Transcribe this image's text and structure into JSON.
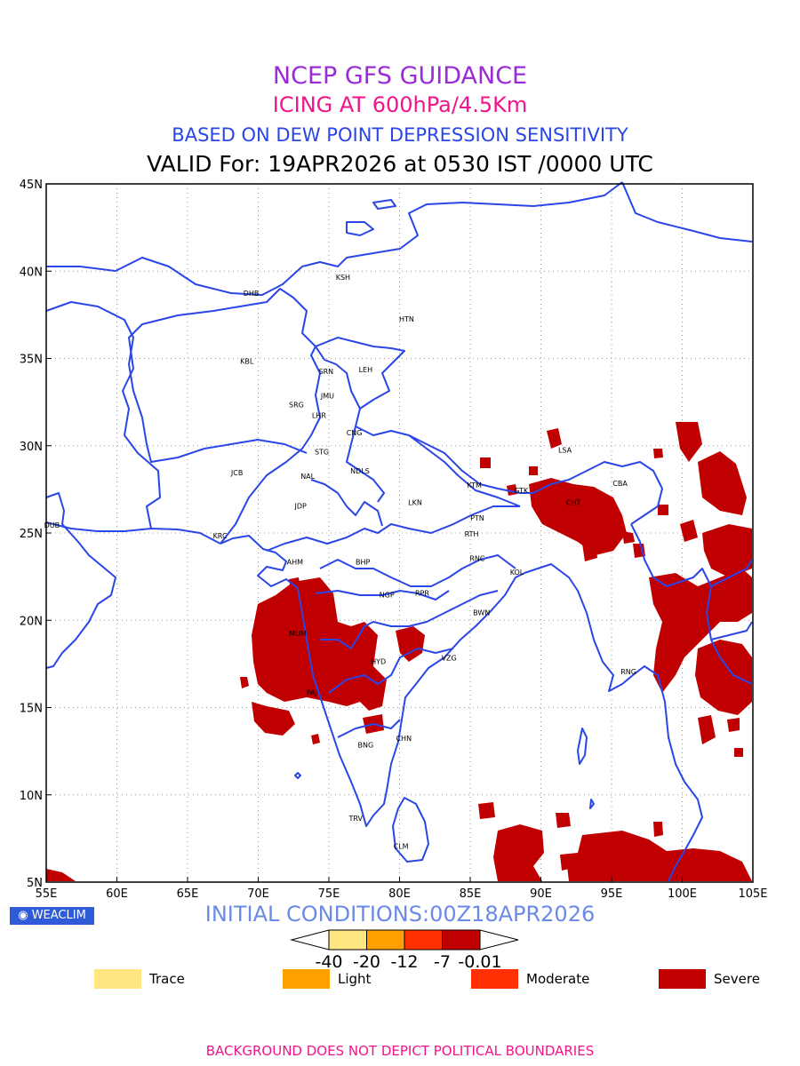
{
  "titles": {
    "line1": "NCEP GFS GUIDANCE",
    "line2": "ICING AT 600hPa/4.5Km",
    "line3": "BASED ON DEW POINT DEPRESSION SENSITIVITY",
    "line4": "VALID For: 19APR2026 at 0530 IST /0000 UTC"
  },
  "map": {
    "lon_range": [
      55,
      105
    ],
    "lat_range": [
      5,
      45
    ],
    "lon_ticks": [
      "55E",
      "60E",
      "65E",
      "70E",
      "75E",
      "80E",
      "85E",
      "90E",
      "95E",
      "100E",
      "105E"
    ],
    "lat_ticks": [
      "5N",
      "10N",
      "15N",
      "20N",
      "25N",
      "30N",
      "35N",
      "40N",
      "45N"
    ],
    "grid": true,
    "colors": {
      "boundary": "#2a46e6",
      "severe": "#c00000",
      "grid": "#999999"
    },
    "stations": [
      {
        "name": "KSH",
        "lon": 76.0,
        "lat": 39.5
      },
      {
        "name": "DHB",
        "lon": 69.5,
        "lat": 38.6
      },
      {
        "name": "HTN",
        "lon": 80.5,
        "lat": 37.1
      },
      {
        "name": "KBL",
        "lon": 69.2,
        "lat": 34.7
      },
      {
        "name": "SRN",
        "lon": 74.8,
        "lat": 34.1
      },
      {
        "name": "LEH",
        "lon": 77.6,
        "lat": 34.2
      },
      {
        "name": "JMU",
        "lon": 74.9,
        "lat": 32.7
      },
      {
        "name": "SRG",
        "lon": 72.7,
        "lat": 32.2
      },
      {
        "name": "LHR",
        "lon": 74.3,
        "lat": 31.6
      },
      {
        "name": "CNG",
        "lon": 76.8,
        "lat": 30.6
      },
      {
        "name": "STG",
        "lon": 74.5,
        "lat": 29.5
      },
      {
        "name": "JCB",
        "lon": 68.5,
        "lat": 28.3
      },
      {
        "name": "NAL",
        "lon": 73.5,
        "lat": 28.1
      },
      {
        "name": "NDLS",
        "lon": 77.2,
        "lat": 28.4
      },
      {
        "name": "LSA",
        "lon": 91.7,
        "lat": 29.6
      },
      {
        "name": "KTM",
        "lon": 85.3,
        "lat": 27.6
      },
      {
        "name": "CBA",
        "lon": 95.6,
        "lat": 27.7
      },
      {
        "name": "GTK",
        "lon": 88.6,
        "lat": 27.3
      },
      {
        "name": "CHT",
        "lon": 92.3,
        "lat": 26.6
      },
      {
        "name": "JDP",
        "lon": 73.0,
        "lat": 26.4
      },
      {
        "name": "LKN",
        "lon": 81.1,
        "lat": 26.6
      },
      {
        "name": "PTN",
        "lon": 85.5,
        "lat": 25.7
      },
      {
        "name": "DUB",
        "lon": 55.4,
        "lat": 25.3
      },
      {
        "name": "KRC",
        "lon": 67.3,
        "lat": 24.7
      },
      {
        "name": "RTH",
        "lon": 85.1,
        "lat": 24.8
      },
      {
        "name": "AHM",
        "lon": 72.6,
        "lat": 23.2
      },
      {
        "name": "BHP",
        "lon": 77.4,
        "lat": 23.2
      },
      {
        "name": "RNC",
        "lon": 85.5,
        "lat": 23.4
      },
      {
        "name": "KOL",
        "lon": 88.3,
        "lat": 22.6
      },
      {
        "name": "RPR",
        "lon": 81.6,
        "lat": 21.4
      },
      {
        "name": "NGP",
        "lon": 79.1,
        "lat": 21.3
      },
      {
        "name": "BWN",
        "lon": 85.8,
        "lat": 20.3
      },
      {
        "name": "MUM",
        "lon": 72.8,
        "lat": 19.1
      },
      {
        "name": "HYD",
        "lon": 78.5,
        "lat": 17.5
      },
      {
        "name": "VZG",
        "lon": 83.5,
        "lat": 17.7
      },
      {
        "name": "RNG",
        "lon": 96.2,
        "lat": 16.9
      },
      {
        "name": "PAJ",
        "lon": 73.8,
        "lat": 15.7
      },
      {
        "name": "CHN",
        "lon": 80.3,
        "lat": 13.1
      },
      {
        "name": "BNG",
        "lon": 77.6,
        "lat": 12.7
      },
      {
        "name": "TRV",
        "lon": 76.9,
        "lat": 8.5
      },
      {
        "name": "CLM",
        "lon": 80.1,
        "lat": 6.9
      }
    ]
  },
  "badge": {
    "label": "WEACLIM"
  },
  "initial_conditions": "INITIAL CONDITIONS:00Z18APR2026",
  "colorbar": {
    "colors": [
      "#ffe680",
      "#ffa000",
      "#ff3000",
      "#c00000"
    ],
    "ticks": [
      "-40",
      "-20",
      "-12",
      "-7",
      "-0.01"
    ]
  },
  "legend": [
    {
      "label": "Trace",
      "color": "#ffe680"
    },
    {
      "label": "Light",
      "color": "#ffa000"
    },
    {
      "label": "Moderate",
      "color": "#ff3000"
    },
    {
      "label": "Severe",
      "color": "#c00000"
    }
  ],
  "footer": "BACKGROUND DOES NOT DEPICT POLITICAL BOUNDARIES"
}
